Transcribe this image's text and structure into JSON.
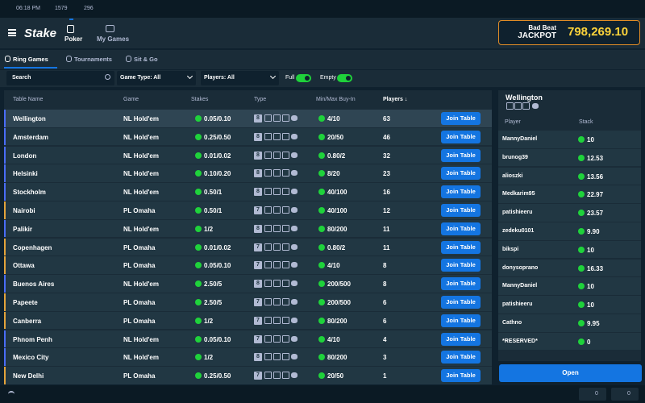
{
  "status": {
    "time": "06:18 PM",
    "users": "1579",
    "tables": "296"
  },
  "nav": {
    "brand": "Stake",
    "items": [
      "Poker",
      "My Games"
    ]
  },
  "jackpot": {
    "label": "Bad Beat",
    "title": "JACKPOT",
    "amount": "798,269.10"
  },
  "tabs": [
    "Ring Games",
    "Tournaments",
    "Sit & Go"
  ],
  "filters": {
    "search": "Search",
    "game_type": "Game Type: All",
    "players": "Players: All",
    "toggles": [
      "Full",
      "Empty"
    ]
  },
  "table": {
    "headers": [
      "Table Name",
      "Game",
      "Stakes",
      "Type",
      "Min/Max Buy-In",
      "Players ↓"
    ],
    "rows": [
      [
        "Wellington",
        "NL Hold'em",
        "0.05/0.10",
        "8",
        "4/10",
        "63",
        "Join Table"
      ],
      [
        "Amsterdam",
        "NL Hold'em",
        "0.25/0.50",
        "8",
        "20/50",
        "46",
        "Join Table"
      ],
      [
        "London",
        "NL Hold'em",
        "0.01/0.02",
        "8",
        "0.80/2",
        "32",
        "Join Table"
      ],
      [
        "Helsinki",
        "NL Hold'em",
        "0.10/0.20",
        "8",
        "8/20",
        "23",
        "Join Table"
      ],
      [
        "Stockholm",
        "NL Hold'em",
        "0.50/1",
        "8",
        "40/100",
        "16",
        "Join Table"
      ],
      [
        "Nairobi",
        "PL Omaha",
        "0.50/1",
        "7",
        "40/100",
        "12",
        "Join Table"
      ],
      [
        "Palikir",
        "NL Hold'em",
        "1/2",
        "8",
        "80/200",
        "11",
        "Join Table"
      ],
      [
        "Copenhagen",
        "PL Omaha",
        "0.01/0.02",
        "7",
        "0.80/2",
        "11",
        "Join Table"
      ],
      [
        "Ottawa",
        "PL Omaha",
        "0.05/0.10",
        "7",
        "4/10",
        "8",
        "Join Table"
      ],
      [
        "Buenos Aires",
        "NL Hold'em",
        "2.50/5",
        "8",
        "200/500",
        "8",
        "Join Table"
      ],
      [
        "Papeete",
        "PL Omaha",
        "2.50/5",
        "7",
        "200/500",
        "6",
        "Join Table"
      ],
      [
        "Canberra",
        "PL Omaha",
        "1/2",
        "7",
        "80/200",
        "6",
        "Join Table"
      ],
      [
        "Phnom Penh",
        "NL Hold'em",
        "0.05/0.10",
        "7",
        "4/10",
        "4",
        "Join Table"
      ],
      [
        "Mexico City",
        "NL Hold'em",
        "1/2",
        "8",
        "80/200",
        "3",
        "Join Table"
      ],
      [
        "New Delhi",
        "PL Omaha",
        "0.25/0.50",
        "7",
        "20/50",
        "1",
        "Join Table"
      ]
    ]
  },
  "panel": {
    "title": "Wellington",
    "headers": [
      "Player",
      "Stack"
    ],
    "players": [
      [
        "MannyDaniel",
        "10"
      ],
      [
        "brunog39",
        "12.53"
      ],
      [
        "alioszki",
        "13.56"
      ],
      [
        "Medkarim95",
        "22.97"
      ],
      [
        "patishieeru",
        "23.57"
      ],
      [
        "zedeku0101",
        "9.90"
      ],
      [
        "bikspi",
        "10"
      ],
      [
        "donysoprano",
        "16.33"
      ],
      [
        "MannyDaniel",
        "10"
      ],
      [
        "patishieeru",
        "10"
      ],
      [
        "Cathno",
        "9.95"
      ],
      [
        "*RESERVED*",
        "0"
      ]
    ],
    "button": "Open"
  },
  "footer": {
    "counters": [
      "0",
      "0"
    ]
  }
}
